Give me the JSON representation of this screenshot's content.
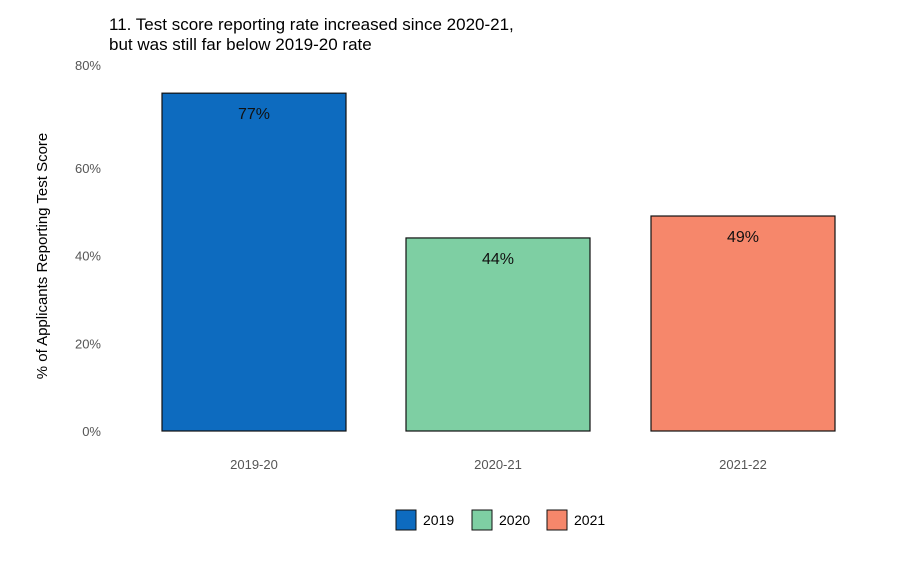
{
  "chart_data": {
    "type": "bar",
    "title": "11. Test score reporting rate increased since 2020-21,\nbut was still far below 2019-20 rate",
    "title_lines": [
      "11. Test score reporting rate increased since 2020-21,",
      "but was still far below 2019-20 rate"
    ],
    "xlabel": "",
    "ylabel": "% of Applicants Reporting Test Score",
    "categories": [
      "2019-20",
      "2020-21",
      "2021-22"
    ],
    "values": [
      77,
      44,
      49
    ],
    "data_labels": [
      "77%",
      "44%",
      "49%"
    ],
    "bar_colors": [
      "#0D6BBF",
      "#7ECFA3",
      "#F6876B"
    ],
    "ylim": [
      0,
      80
    ],
    "y_ticks": [
      0,
      20,
      40,
      60,
      80
    ],
    "y_tick_labels": [
      "0%",
      "20%",
      "40%",
      "60%",
      "80%"
    ],
    "grid": false,
    "legend": {
      "position": "bottom",
      "entries": [
        {
          "label": "2019",
          "color": "#0D6BBF"
        },
        {
          "label": "2020",
          "color": "#7ECFA3"
        },
        {
          "label": "2021",
          "color": "#F6876B"
        }
      ]
    }
  }
}
